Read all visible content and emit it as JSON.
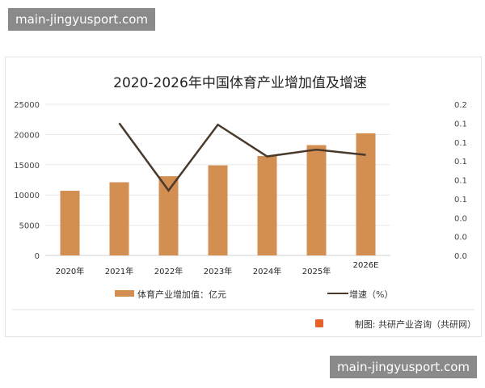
{
  "watermark_top": "main-jingyusport.com",
  "watermark_bottom": "main-jingyusport.com",
  "chart_data": {
    "type": "bar",
    "title": "2020-2026年中国体育产业增加值及增速",
    "categories": [
      "2020年",
      "2021年",
      "2022年",
      "2023年",
      "2024年",
      "2025年",
      "2026E"
    ],
    "series": [
      {
        "name": "体育产业增加值：亿元",
        "type": "bar",
        "axis": "left",
        "color": "#d38e52",
        "values": [
          10700,
          12100,
          13100,
          14900,
          16450,
          18250,
          20200
        ]
      },
      {
        "name": "增速（%）",
        "type": "line",
        "axis": "right",
        "color": "#4a3a2c",
        "values": [
          null,
          0.175,
          0.086,
          0.173,
          0.131,
          0.14,
          0.133
        ]
      }
    ],
    "left_axis": {
      "ylim": [
        0,
        25000
      ],
      "ticks": [
        "0",
        "5000",
        "10000",
        "15000",
        "20000",
        "25000"
      ]
    },
    "right_axis": {
      "ylim": [
        0,
        0.2
      ],
      "ticks": [
        "0.0",
        "0.0",
        "0.0",
        "0.1",
        "0.1",
        "0.1",
        "0.1",
        "0.1",
        "0.2"
      ]
    },
    "grid": true,
    "legend_position": "bottom",
    "source": "制图: 共研产业咨询（共研网）"
  }
}
